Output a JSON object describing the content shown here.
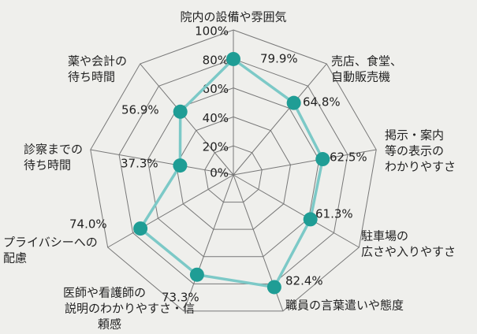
{
  "chart_data": {
    "type": "radar",
    "categories": [
      [
        "院内の設備や雰囲気"
      ],
      [
        "売店、食堂、",
        "自動販売機"
      ],
      [
        "掲示・案内",
        "等の表示の",
        "わかりやすさ"
      ],
      [
        "駐車場の",
        "広さや入りやすさ"
      ],
      [
        "職員の言葉遣いや態度"
      ],
      [
        "医師や看護師の",
        "説明のわかりやすさ・信",
        "頼感"
      ],
      [
        "プライバシーへの",
        "配慮"
      ],
      [
        "診察までの",
        "待ち時間"
      ],
      [
        "薬や会計の",
        "待ち時間"
      ]
    ],
    "values": [
      79.9,
      64.8,
      62.5,
      61.3,
      82.4,
      73.3,
      74.0,
      37.3,
      56.9
    ],
    "value_labels": [
      "79.9%",
      "64.8%",
      "62.5%",
      "61.3%",
      "82.4%",
      "73.3%",
      "74.0%",
      "37.3%",
      "56.9%"
    ],
    "rlim": [
      0,
      100
    ],
    "rticks": [
      {
        "value": 0,
        "label": "0%"
      },
      {
        "value": 20,
        "label": "20%"
      },
      {
        "value": 40,
        "label": "40%"
      },
      {
        "value": 60,
        "label": "60%"
      },
      {
        "value": 80,
        "label": "80%"
      },
      {
        "value": 100,
        "label": "100%"
      }
    ],
    "color": "#7cc9c7",
    "marker_color": "#1f9d95",
    "label_color": "#3aaeb1"
  }
}
